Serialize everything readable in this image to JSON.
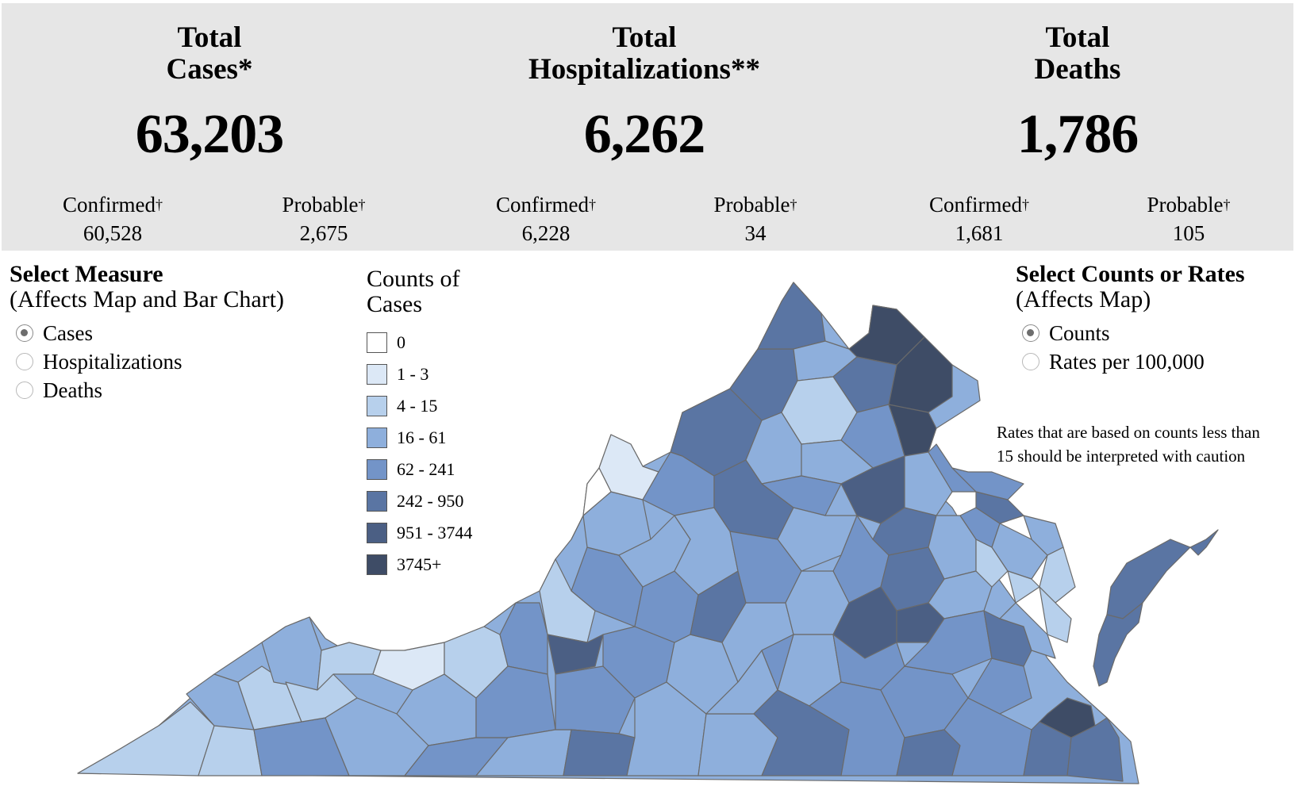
{
  "summary": {
    "cases": {
      "title_line1": "Total",
      "title_line2": "Cases*",
      "total": "63,203",
      "confirmed_label": "Confirmed",
      "confirmed": "60,528",
      "probable_label": "Probable",
      "probable": "2,675"
    },
    "hospitalizations": {
      "title_line1": "Total",
      "title_line2": "Hospitalizations**",
      "total": "6,262",
      "confirmed_label": "Confirmed",
      "confirmed": "6,228",
      "probable_label": "Probable",
      "probable": "34"
    },
    "deaths": {
      "title_line1": "Total",
      "title_line2": "Deaths",
      "total": "1,786",
      "confirmed_label": "Confirmed",
      "confirmed": "1,681",
      "probable_label": "Probable",
      "probable": "105"
    },
    "dagger": "†"
  },
  "measure": {
    "title": "Select Measure",
    "subtitle": "(Affects Map and Bar Chart)",
    "options": [
      "Cases",
      "Hospitalizations",
      "Deaths"
    ],
    "selected": "Cases"
  },
  "legend": {
    "title_line1": "Counts of",
    "title_line2": "Cases",
    "bins": [
      {
        "label": "0",
        "color": "#ffffff"
      },
      {
        "label": "1 - 3",
        "color": "#dce8f6"
      },
      {
        "label": "4 - 15",
        "color": "#b7d0ec"
      },
      {
        "label": "16 - 61",
        "color": "#8eafdc"
      },
      {
        "label": "62 - 241",
        "color": "#7394c8"
      },
      {
        "label": "242 - 950",
        "color": "#5a75a3"
      },
      {
        "label": "951 - 3744",
        "color": "#4b5f84"
      },
      {
        "label": "3745+",
        "color": "#3e4c66"
      }
    ]
  },
  "rates": {
    "title": "Select Counts or Rates",
    "subtitle": "(Affects Map)",
    "options": [
      "Counts",
      "Rates per 100,000"
    ],
    "selected": "Counts",
    "note": "Rates that are based on counts less than 15 should be interpreted with caution"
  }
}
